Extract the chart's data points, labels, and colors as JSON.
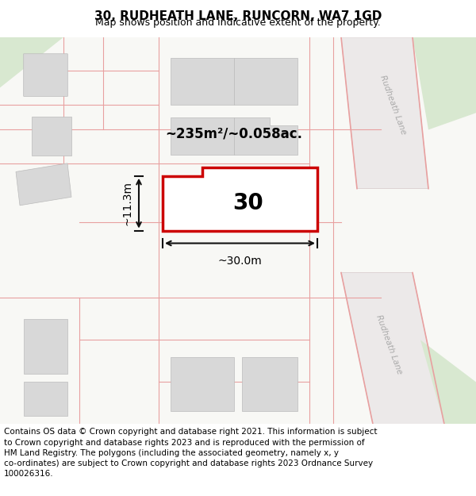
{
  "title": "30, RUDHEATH LANE, RUNCORN, WA7 1GD",
  "subtitle": "Map shows position and indicative extent of the property.",
  "footer": "Contains OS data © Crown copyright and database right 2021. This information is subject to Crown copyright and database rights 2023 and is reproduced with the permission of HM Land Registry. The polygons (including the associated geometry, namely x, y co-ordinates) are subject to Crown copyright and database rights 2023 Ordnance Survey 100026316.",
  "area_label": "~235m²/~0.058ac.",
  "width_label": "~30.0m",
  "height_label": "~11.3m",
  "plot_number": "30",
  "bg_color": "#f5f5f0",
  "map_bg": "#f8f8f5",
  "road_color": "#e8e8e8",
  "plot_fill": "#ffffff",
  "plot_outline": "#cc0000",
  "dim_color": "#111111",
  "road_label_color": "#aaaaaa",
  "road_label": "Rudheath Lane",
  "footer_fontsize": 7.5,
  "title_fontsize": 11,
  "subtitle_fontsize": 9
}
